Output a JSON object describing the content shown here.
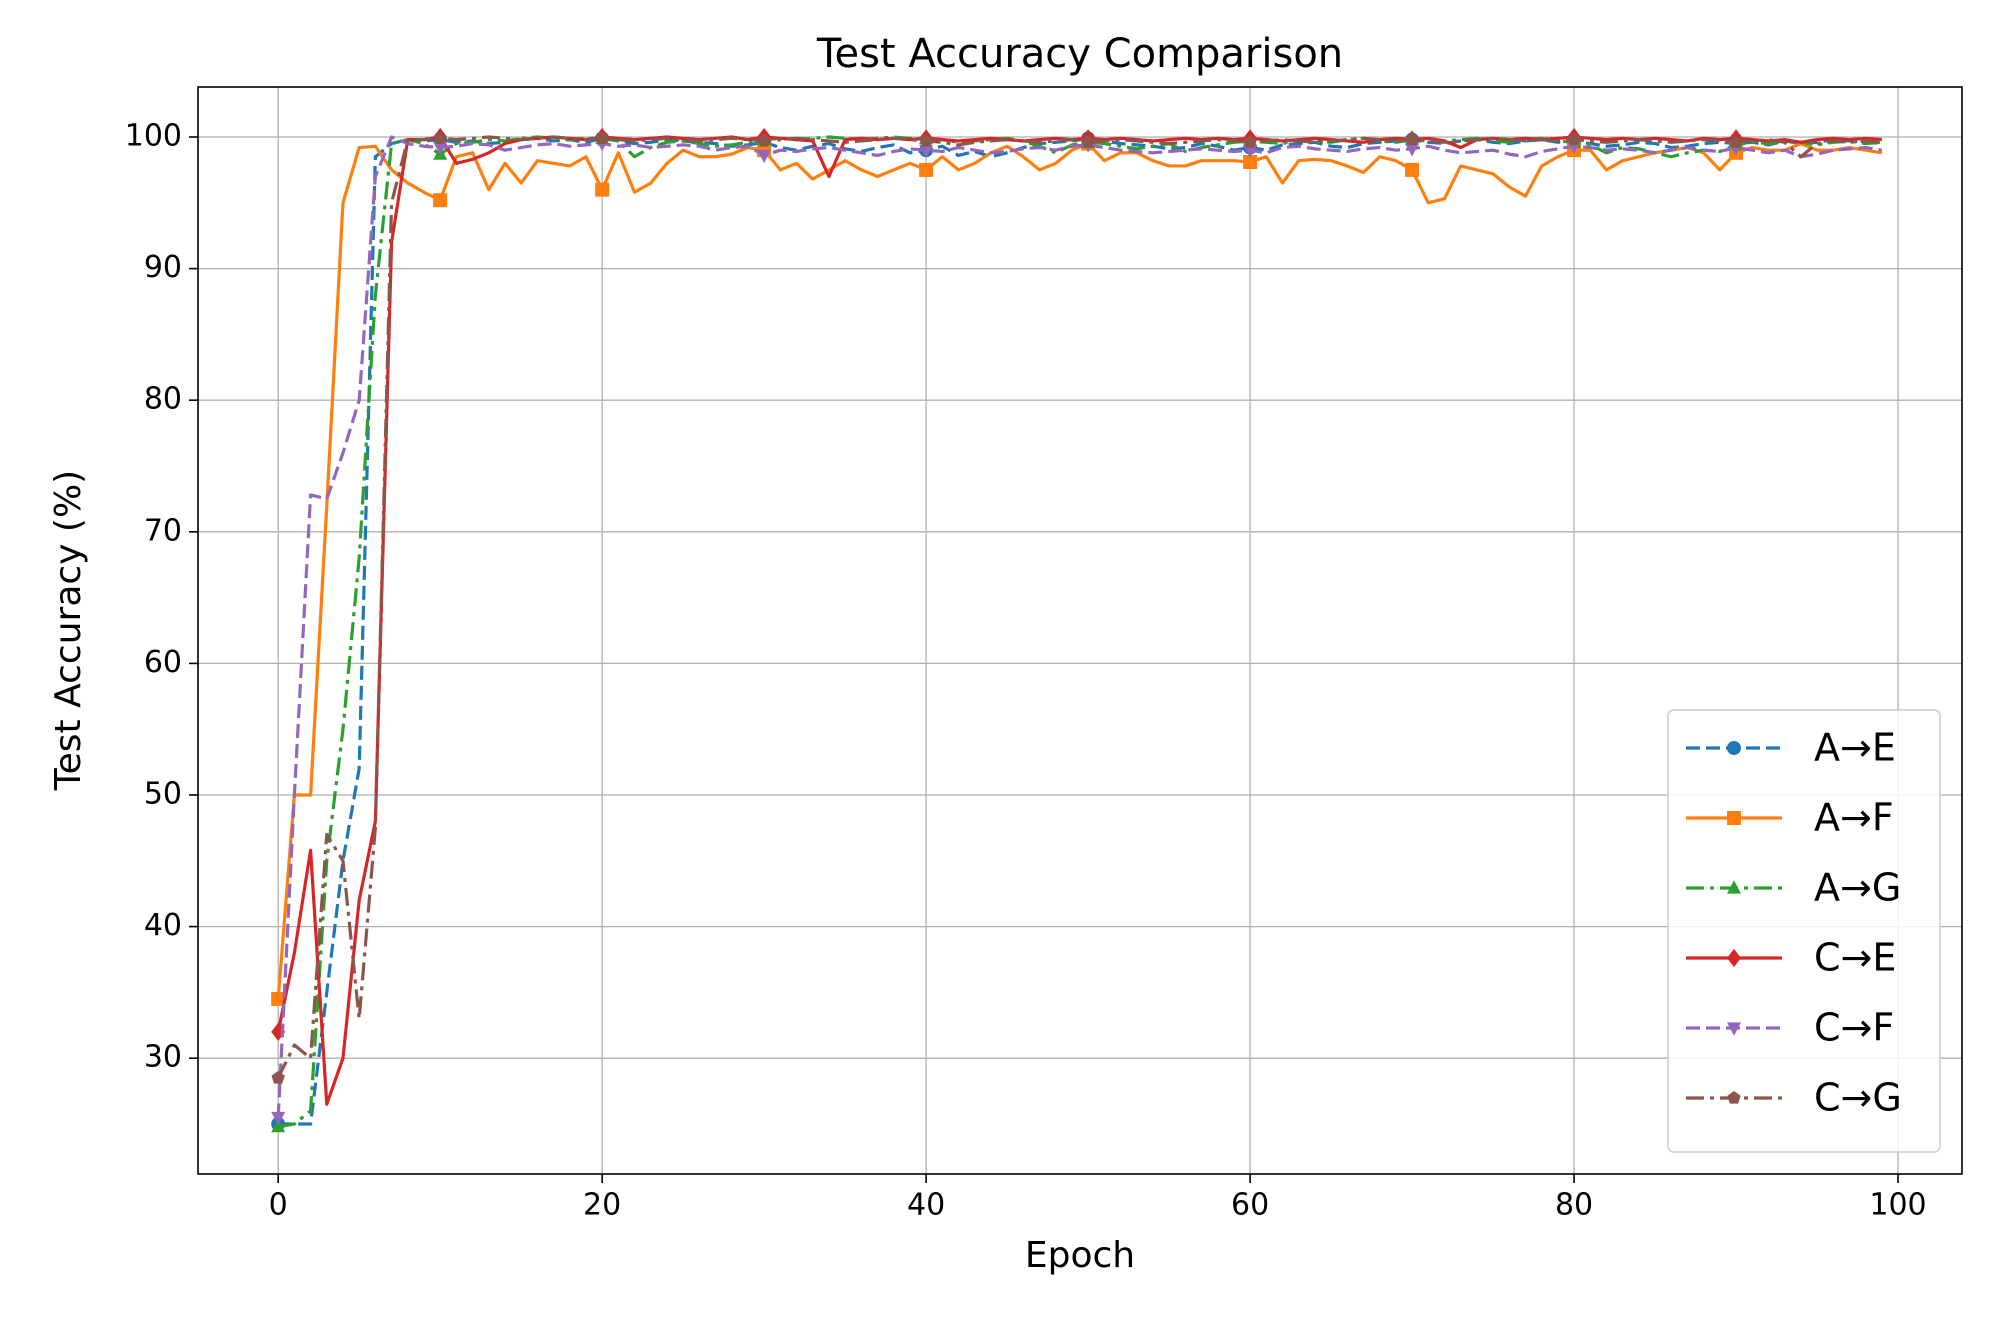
{
  "chart_data": {
    "type": "line",
    "title": "Test Accuracy Comparison",
    "x_label": "Epoch",
    "y_label": "Test Accuracy (%)",
    "x": [
      0,
      1,
      2,
      3,
      4,
      5,
      6,
      7,
      8,
      9,
      10,
      11,
      12,
      13,
      14,
      15,
      16,
      17,
      18,
      19,
      20,
      21,
      22,
      23,
      24,
      25,
      26,
      27,
      28,
      29,
      30,
      31,
      32,
      33,
      34,
      35,
      36,
      37,
      38,
      39,
      40,
      41,
      42,
      43,
      44,
      45,
      46,
      47,
      48,
      49,
      50,
      51,
      52,
      53,
      54,
      55,
      56,
      57,
      58,
      59,
      60,
      61,
      62,
      63,
      64,
      65,
      66,
      67,
      68,
      69,
      70,
      71,
      72,
      73,
      74,
      75,
      76,
      77,
      78,
      79,
      80,
      81,
      82,
      83,
      84,
      85,
      86,
      87,
      88,
      89,
      90,
      91,
      92,
      93,
      94,
      95,
      96,
      97,
      98,
      99
    ],
    "xlim": [
      -4.95,
      103.95
    ],
    "xticks": [
      0,
      20,
      40,
      60,
      80,
      100
    ],
    "ylim": [
      21.2,
      103.8
    ],
    "yticks": [
      30,
      40,
      50,
      60,
      70,
      80,
      90,
      100
    ],
    "grid": true,
    "legend_loc": "lower right",
    "markevery": 10,
    "series": [
      {
        "name": "A→E",
        "color": "#1f77b4",
        "linestyle": "dashed",
        "marker": "circle",
        "values": [
          25,
          25,
          25,
          35,
          45,
          52,
          98.5,
          99.5,
          99.8,
          99.7,
          99.8,
          99.6,
          99.7,
          99.5,
          99.6,
          99.8,
          99.9,
          99.7,
          99.8,
          99.6,
          99.9,
          99.7,
          99.5,
          99.6,
          99.8,
          99.7,
          99.6,
          99.5,
          99.3,
          99.4,
          99.6,
          99.2,
          99.0,
          99.3,
          99.5,
          99.1,
          98.9,
          99.2,
          99.4,
          98.8,
          99.0,
          99.3,
          98.6,
          98.9,
          98.5,
          98.8,
          99.2,
          99.5,
          99.6,
          99.7,
          99.9,
          99.7,
          99.5,
          99.4,
          99.3,
          99.1,
          99.2,
          99.5,
          99.3,
          99.0,
          99.2,
          99.0,
          99.4,
          99.5,
          99.6,
          99.3,
          99.2,
          99.5,
          99.6,
          99.7,
          99.8,
          99.6,
          99.5,
          99.7,
          99.8,
          99.6,
          99.5,
          99.7,
          99.8,
          99.6,
          99.7,
          99.5,
          99.3,
          99.4,
          99.6,
          99.5,
          99.2,
          99.3,
          99.5,
          99.6,
          99.5,
          99.6,
          99.4,
          99.7,
          99.5,
          99.6,
          99.8,
          99.7,
          99.6,
          99.5
        ]
      },
      {
        "name": "A→F",
        "color": "#ff7f0e",
        "linestyle": "solid",
        "marker": "square",
        "values": [
          34.5,
          50,
          50,
          72,
          95,
          99.2,
          99.3,
          97.5,
          96.5,
          95.8,
          95.2,
          98.5,
          98.8,
          96,
          98,
          96.5,
          98.2,
          98,
          97.8,
          98.5,
          96,
          98.8,
          95.8,
          96.5,
          98,
          99,
          98.5,
          98.5,
          98.7,
          99.2,
          99,
          97.5,
          98,
          96.8,
          97.5,
          98.2,
          97.5,
          97,
          97.5,
          98,
          97.5,
          98.5,
          97.5,
          98,
          98.8,
          99.3,
          98.5,
          97.5,
          98,
          99,
          99.5,
          98.2,
          98.8,
          98.8,
          98.2,
          97.8,
          97.8,
          98.2,
          98.2,
          98.2,
          98.1,
          98.5,
          96.5,
          98.2,
          98.3,
          98.2,
          97.8,
          97.3,
          98.5,
          98.2,
          97.5,
          95,
          95.3,
          97.8,
          97.5,
          97.2,
          96.2,
          95.5,
          97.8,
          98.5,
          99,
          99,
          97.5,
          98.2,
          98.5,
          98.8,
          99,
          99.2,
          98.8,
          97.5,
          98.8,
          99.2,
          99,
          99,
          99.5,
          99,
          99,
          99.2,
          99,
          98.8
        ]
      },
      {
        "name": "A→G",
        "color": "#2ca02c",
        "linestyle": "dashdot",
        "marker": "triangle-up",
        "values": [
          24.8,
          25,
          26,
          45,
          55,
          68,
          88,
          99.5,
          99.8,
          99.5,
          98.7,
          99.5,
          99.6,
          99.8,
          99.7,
          99.9,
          100,
          99.9,
          99.8,
          99.9,
          99.9,
          99.7,
          98.5,
          99.2,
          99.6,
          99.7,
          99.5,
          99.3,
          99.4,
          99.6,
          99.8,
          99.9,
          99.8,
          99.9,
          100,
          99.9,
          99.8,
          99.9,
          100,
          99.9,
          99.9,
          99.8,
          99.6,
          99.7,
          99.8,
          99.9,
          99.7,
          99.3,
          98.8,
          99.4,
          99.6,
          99.5,
          99.3,
          99.1,
          99.3,
          99.5,
          98.9,
          99.2,
          99.4,
          99.6,
          99.7,
          99.6,
          99.5,
          99.8,
          99.7,
          99.6,
          99.8,
          99.9,
          99.7,
          99.6,
          99.8,
          99.9,
          99.7,
          99.8,
          99.9,
          99.7,
          99.6,
          99.8,
          99.9,
          99.7,
          99.6,
          99.4,
          98.8,
          99.2,
          99.1,
          98.8,
          98.5,
          98.8,
          99.0,
          98.9,
          99.4,
          99.6,
          99.5,
          99.7,
          99.6,
          99.4,
          99.6,
          99.7,
          99.5,
          99.6
        ]
      },
      {
        "name": "C→E",
        "color": "#d62728",
        "linestyle": "solid",
        "marker": "diamond",
        "values": [
          32,
          38,
          45.8,
          26.5,
          30,
          42,
          48,
          92,
          99.8,
          99.8,
          100,
          98.0,
          98.3,
          98.8,
          99.5,
          99.8,
          99.9,
          100,
          99.9,
          99.8,
          100,
          99.9,
          99.8,
          99.9,
          100,
          99.9,
          99.8,
          99.9,
          100,
          99.8,
          100,
          99.9,
          99.8,
          99.7,
          97.0,
          99.8,
          99.9,
          99.8,
          99.9,
          99.8,
          99.9,
          99.8,
          99.7,
          99.8,
          99.9,
          99.8,
          99.7,
          99.8,
          99.9,
          99.8,
          99.9,
          99.8,
          99.9,
          99.8,
          99.7,
          99.8,
          99.9,
          99.8,
          99.9,
          99.8,
          99.9,
          99.8,
          99.7,
          99.8,
          99.9,
          99.8,
          99.7,
          99.6,
          99.8,
          99.9,
          99.8,
          99.9,
          99.7,
          99.2,
          99.8,
          99.9,
          99.8,
          99.9,
          99.8,
          99.9,
          100,
          99.9,
          99.8,
          99.9,
          99.8,
          99.9,
          99.8,
          99.7,
          99.9,
          99.8,
          99.9,
          99.8,
          99.7,
          99.8,
          99.6,
          99.8,
          99.9,
          99.8,
          99.9,
          99.8
        ]
      },
      {
        "name": "C→F",
        "color": "#9467bd",
        "linestyle": "dashed",
        "marker": "triangle-down",
        "values": [
          25.5,
          50,
          72.8,
          72.5,
          76,
          80,
          97,
          100,
          99.5,
          99.3,
          99.2,
          99.3,
          99.5,
          99.4,
          99.0,
          99.2,
          99.4,
          99.5,
          99.3,
          99.4,
          99.5,
          99.3,
          99.4,
          99.2,
          99.3,
          99.4,
          99.3,
          99.0,
          99.2,
          99.3,
          98.6,
          99.0,
          98.9,
          99.1,
          99.2,
          99.0,
          98.8,
          98.6,
          98.9,
          99.1,
          99.0,
          98.9,
          99.2,
          99.0,
          98.8,
          98.9,
          99.1,
          99.2,
          99.0,
          99.3,
          99.4,
          99.2,
          99.0,
          98.9,
          98.8,
          98.9,
          99.0,
          99.1,
          99.0,
          98.9,
          99.0,
          98.8,
          99.2,
          99.3,
          99.1,
          99.0,
          98.9,
          99.1,
          99.2,
          99.0,
          99.1,
          99.3,
          99.0,
          98.8,
          98.9,
          99.0,
          98.7,
          98.5,
          98.9,
          99.1,
          99.3,
          99.2,
          99.0,
          99.1,
          99.0,
          98.8,
          99.0,
          99.2,
          99.0,
          98.9,
          99.2,
          99.0,
          98.8,
          99.0,
          98.5,
          98.7,
          99.0,
          99.1,
          99.2,
          99.0
        ]
      },
      {
        "name": "C→G",
        "color": "#8c564b",
        "linestyle": "dashdot",
        "marker": "pentagon",
        "values": [
          28.5,
          31,
          30,
          47,
          45,
          33,
          47.5,
          95,
          99.8,
          99.8,
          99.9,
          99.8,
          99.9,
          100,
          99.9,
          99.8,
          99.9,
          100,
          99.9,
          99.8,
          99.9,
          99.8,
          99.7,
          99.8,
          99.9,
          99.8,
          99.7,
          99.8,
          99.9,
          99.8,
          99.7,
          99.8,
          99.9,
          99.8,
          99.7,
          99.6,
          99.7,
          99.8,
          99.9,
          99.8,
          99.7,
          99.6,
          99.4,
          99.6,
          99.7,
          99.8,
          99.7,
          99.6,
          99.7,
          99.8,
          99.6,
          99.7,
          99.8,
          99.7,
          99.6,
          99.5,
          99.6,
          99.7,
          99.8,
          99.7,
          99.6,
          99.7,
          99.8,
          99.7,
          99.6,
          99.7,
          99.8,
          99.9,
          99.8,
          99.7,
          99.8,
          99.7,
          99.6,
          99.7,
          99.8,
          99.9,
          99.8,
          99.7,
          99.8,
          99.7,
          99.8,
          99.7,
          99.6,
          99.7,
          99.8,
          99.7,
          99.6,
          99.7,
          99.8,
          99.7,
          99.6,
          99.7,
          99.8,
          99.6,
          98.5,
          99.5,
          99.7,
          99.6,
          99.7,
          99.6
        ]
      }
    ]
  }
}
